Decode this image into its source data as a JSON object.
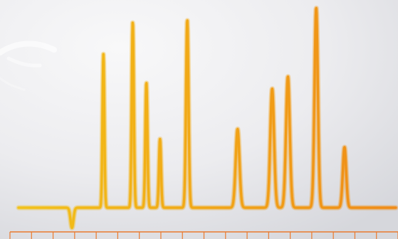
{
  "chart_data": {
    "type": "line",
    "title": "",
    "xlabel": "",
    "ylabel": "",
    "x_range": [
      0,
      18
    ],
    "y_range": [
      -0.12,
      1.0
    ],
    "ticks": 18,
    "grid": false,
    "legend": "none",
    "baseline": 0.0,
    "series": [
      {
        "name": "",
        "peaks": [
          {
            "x": 2.55,
            "height": -0.1,
            "width": 0.07
          },
          {
            "x": 4.05,
            "height": 0.76,
            "width": 0.045
          },
          {
            "x": 5.45,
            "height": 0.92,
            "width": 0.05
          },
          {
            "x": 6.1,
            "height": 0.62,
            "width": 0.05
          },
          {
            "x": 6.75,
            "height": 0.34,
            "width": 0.05
          },
          {
            "x": 8.05,
            "height": 0.93,
            "width": 0.06
          },
          {
            "x": 10.45,
            "height": 0.39,
            "width": 0.09
          },
          {
            "x": 12.1,
            "height": 0.59,
            "width": 0.09
          },
          {
            "x": 12.85,
            "height": 0.65,
            "width": 0.09
          },
          {
            "x": 14.2,
            "height": 0.99,
            "width": 0.08
          },
          {
            "x": 15.55,
            "height": 0.3,
            "width": 0.08
          }
        ]
      }
    ],
    "colors": {
      "line_start": "#f2c21a",
      "line_end": "#f08a14",
      "background_light": "#f7f7f8",
      "background_dark": "#d9dadf",
      "axis": "#ea7a2e"
    }
  }
}
